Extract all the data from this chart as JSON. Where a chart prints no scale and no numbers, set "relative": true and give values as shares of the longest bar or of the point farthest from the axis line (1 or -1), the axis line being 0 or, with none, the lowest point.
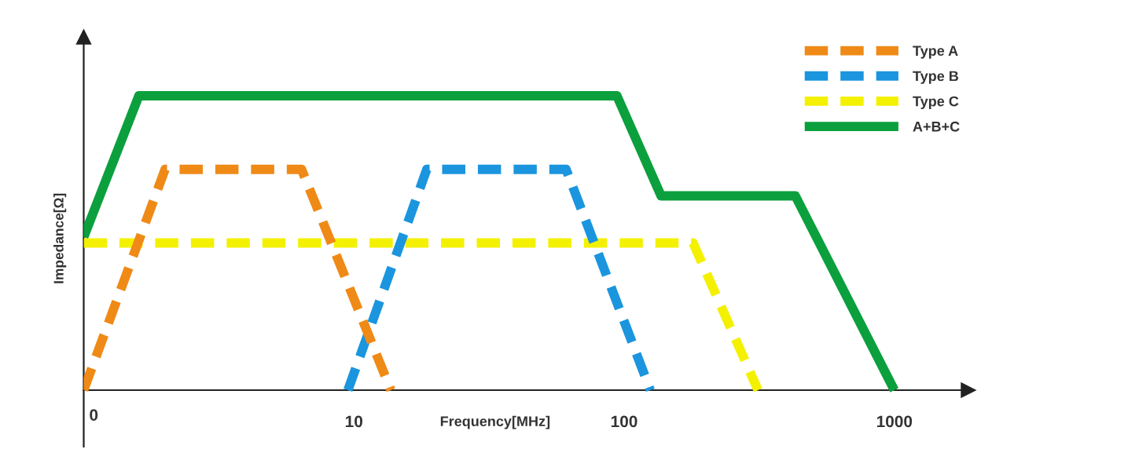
{
  "chart_data": {
    "type": "line",
    "xlabel": "Frequency[MHz]",
    "ylabel": "Impedance[Ω]",
    "log": "x",
    "relative": true,
    "xlim": [
      1,
      1880
    ],
    "xticks": [
      10,
      100,
      1000
    ],
    "legend": "top right",
    "annotations": [
      "0"
    ],
    "series": [
      {
        "name": "Type A",
        "color": "#ef8a17",
        "line_style": "dashed",
        "x": [
          1,
          2,
          6.4,
          13.7
        ],
        "values": [
          0,
          0.75,
          0.75,
          0
        ]
      },
      {
        "name": "Type B",
        "color": "#1b95de",
        "line_style": "dashed",
        "x": [
          9.5,
          18.6,
          61,
          125
        ],
        "values": [
          0,
          0.75,
          0.75,
          0
        ]
      },
      {
        "name": "Type C",
        "color": "#f4f100",
        "line_style": "dashed",
        "x": [
          1,
          180,
          313
        ],
        "values": [
          0.5,
          0.5,
          0
        ]
      },
      {
        "name": "A+B+C",
        "color": "#0ba03d",
        "line_style": "solid",
        "x": [
          1,
          1.6,
          94,
          137,
          430,
          1000
        ],
        "values": [
          0.52,
          1,
          1,
          0.66,
          0.66,
          0
        ]
      }
    ]
  }
}
